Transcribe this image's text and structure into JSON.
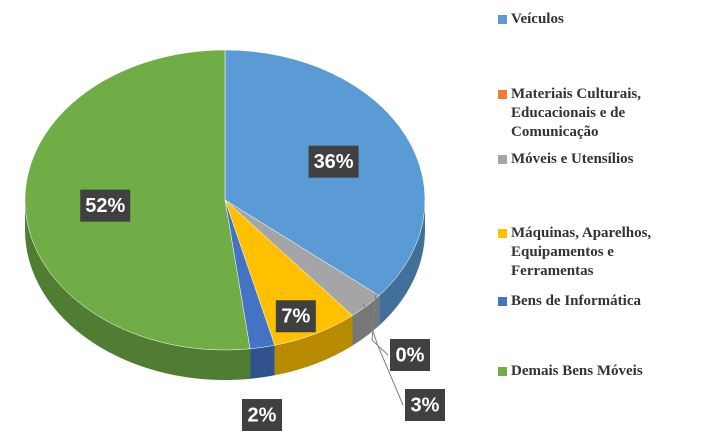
{
  "chart_data": {
    "type": "pie",
    "categories": [
      "Veículos",
      "Materiais Culturais, Educacionais e de Comunicação",
      "Móveis e Utensílios",
      "Máquinas, Aparelhos, Equipamentos e Ferramentas",
      "Bens de Informática",
      "Demais Bens Móveis"
    ],
    "values": [
      36,
      0,
      3,
      7,
      2,
      52
    ],
    "value_labels": [
      "36%",
      "0%",
      "3%",
      "7%",
      "2%",
      "52%"
    ],
    "colors": [
      "#5b9bd5",
      "#ed7d31",
      "#a5a5a5",
      "#ffc000",
      "#4472c4",
      "#70ad47"
    ],
    "legend": "right"
  }
}
